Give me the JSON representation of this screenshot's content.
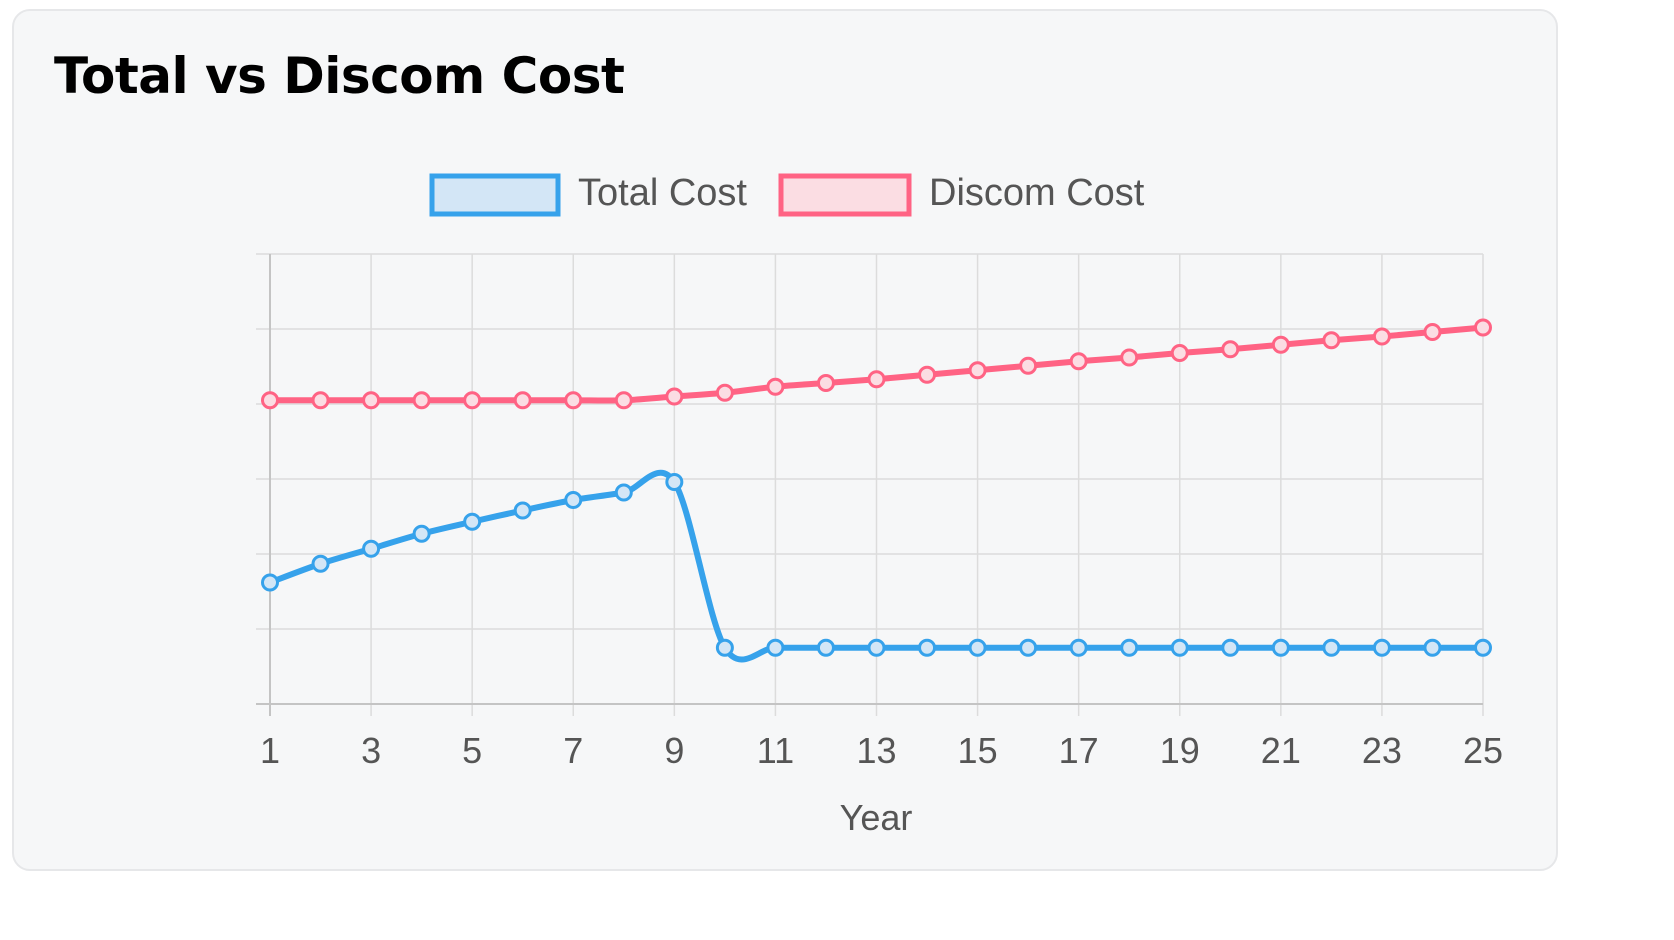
{
  "card": {
    "title": "Total vs Discom Cost"
  },
  "chart_data": {
    "type": "line",
    "title": "Total vs Discom Cost",
    "xlabel": "Year",
    "ylabel": "",
    "x": [
      1,
      2,
      3,
      4,
      5,
      6,
      7,
      8,
      9,
      10,
      11,
      12,
      13,
      14,
      15,
      16,
      17,
      18,
      19,
      20,
      21,
      22,
      23,
      24,
      25
    ],
    "x_tick_labels": [
      "1",
      "3",
      "5",
      "7",
      "9",
      "11",
      "13",
      "15",
      "17",
      "19",
      "21",
      "23",
      "25"
    ],
    "ylim": [
      0,
      6
    ],
    "y_tick_labels_visible": false,
    "grid": true,
    "legend_position": "top",
    "series": [
      {
        "name": "Total Cost",
        "color": "#36a2eb",
        "fill": "#d3e6f6",
        "values": [
          1.62,
          1.87,
          2.07,
          2.27,
          2.43,
          2.58,
          2.72,
          2.82,
          2.96,
          0.75,
          0.75,
          0.75,
          0.75,
          0.75,
          0.75,
          0.75,
          0.75,
          0.75,
          0.75,
          0.75,
          0.75,
          0.75,
          0.75,
          0.75,
          0.75
        ]
      },
      {
        "name": "Discom Cost",
        "color": "#ff6384",
        "fill": "#fbdde3",
        "values": [
          4.05,
          4.05,
          4.05,
          4.05,
          4.05,
          4.05,
          4.05,
          4.05,
          4.1,
          4.15,
          4.23,
          4.28,
          4.33,
          4.39,
          4.45,
          4.51,
          4.57,
          4.62,
          4.68,
          4.73,
          4.79,
          4.85,
          4.9,
          4.96,
          5.02
        ]
      }
    ]
  }
}
